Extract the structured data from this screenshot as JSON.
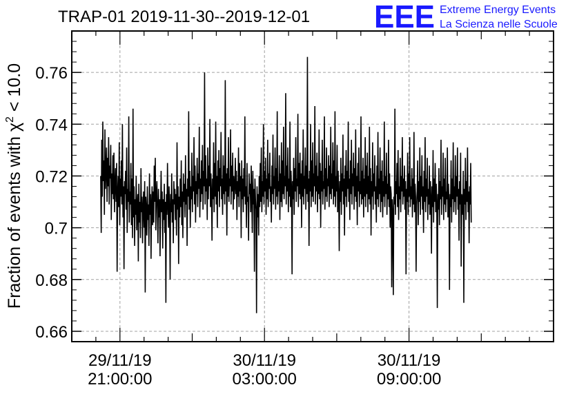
{
  "chart_data": {
    "type": "line",
    "title": "TRAP-01 2019-11-30--2019-12-01",
    "ylabel": "Fraction of events with χ² < 10.0",
    "ylabel_main": "Fraction of events with ",
    "ylabel_symbol": "χ",
    "ylabel_sup": "2",
    "ylabel_tail": " < 10.0",
    "xlabel": "",
    "ylim": [
      0.656,
      0.776
    ],
    "xlim": [
      "2019-11-29 19:00:00",
      "2019-11-30 15:00:00"
    ],
    "grid": true,
    "y_ticks": [
      {
        "value": 0.66,
        "label": "0.66"
      },
      {
        "value": 0.68,
        "label": "0.68"
      },
      {
        "value": 0.7,
        "label": "0.7"
      },
      {
        "value": 0.72,
        "label": "0.72"
      },
      {
        "value": 0.74,
        "label": "0.74"
      },
      {
        "value": 0.76,
        "label": "0.76"
      }
    ],
    "x_ticks": [
      {
        "time": "2019-11-29 21:00:00",
        "date_label": "29/11/19",
        "time_label": "21:00:00"
      },
      {
        "time": "2019-11-30 03:00:00",
        "date_label": "30/11/19",
        "time_label": "03:00:00"
      },
      {
        "time": "2019-11-30 09:00:00",
        "date_label": "30/11/19",
        "time_label": "09:00:00"
      }
    ],
    "series": [
      {
        "x_start": "2019-11-29 20:12:00",
        "x_end": "2019-11-30 11:35:00",
        "color": "#000000",
        "values": [
          0.72,
          0.698,
          0.734,
          0.712,
          0.741,
          0.718,
          0.726,
          0.705,
          0.738,
          0.715,
          0.722,
          0.731,
          0.71,
          0.727,
          0.716,
          0.735,
          0.709,
          0.724,
          0.719,
          0.732,
          0.703,
          0.721,
          0.713,
          0.728,
          0.711,
          0.729,
          0.706,
          0.717,
          0.723,
          0.71,
          0.725,
          0.683,
          0.714,
          0.72,
          0.708,
          0.733,
          0.701,
          0.719,
          0.712,
          0.726,
          0.709,
          0.74,
          0.704,
          0.716,
          0.684,
          0.718,
          0.713,
          0.722,
          0.707,
          0.731,
          0.698,
          0.715,
          0.71,
          0.743,
          0.702,
          0.714,
          0.709,
          0.725,
          0.701,
          0.719,
          0.696,
          0.746,
          0.704,
          0.716,
          0.693,
          0.711,
          0.705,
          0.72,
          0.699,
          0.708,
          0.713,
          0.687,
          0.717,
          0.702,
          0.71,
          0.696,
          0.723,
          0.706,
          0.712,
          0.694,
          0.708,
          0.714,
          0.7,
          0.718,
          0.675,
          0.712,
          0.707,
          0.697,
          0.716,
          0.703,
          0.709,
          0.693,
          0.721,
          0.705,
          0.713,
          0.688,
          0.709,
          0.716,
          0.701,
          0.714,
          0.702,
          0.724,
          0.71,
          0.727,
          0.699,
          0.712,
          0.718,
          0.707,
          0.694,
          0.715,
          0.704,
          0.711,
          0.689,
          0.708,
          0.722,
          0.706,
          0.714,
          0.692,
          0.711,
          0.703,
          0.717,
          0.698,
          0.71,
          0.671,
          0.713,
          0.705,
          0.725,
          0.709,
          0.7,
          0.716,
          0.708,
          0.68,
          0.713,
          0.706,
          0.721,
          0.702,
          0.711,
          0.694,
          0.718,
          0.709,
          0.715,
          0.703,
          0.713,
          0.697,
          0.733,
          0.707,
          0.716,
          0.686,
          0.712,
          0.704,
          0.719,
          0.708,
          0.726,
          0.701,
          0.714,
          0.696,
          0.721,
          0.71,
          0.717,
          0.704,
          0.728,
          0.709,
          0.715,
          0.693,
          0.719,
          0.712,
          0.745,
          0.707,
          0.722,
          0.7,
          0.716,
          0.711,
          0.729,
          0.706,
          0.72,
          0.714,
          0.735,
          0.709,
          0.724,
          0.702,
          0.718,
          0.713,
          0.727,
          0.708,
          0.721,
          0.715,
          0.739,
          0.704,
          0.719,
          0.71,
          0.726,
          0.713,
          0.732,
          0.707,
          0.722,
          0.716,
          0.76,
          0.709,
          0.728,
          0.714,
          0.719,
          0.703,
          0.731,
          0.711,
          0.724,
          0.716,
          0.742,
          0.708,
          0.721,
          0.713,
          0.695,
          0.719,
          0.711,
          0.733,
          0.706,
          0.725,
          0.712,
          0.741,
          0.709,
          0.72,
          0.7,
          0.726,
          0.714,
          0.73,
          0.708,
          0.723,
          0.716,
          0.737,
          0.711,
          0.719,
          0.705,
          0.728,
          0.713,
          0.724,
          0.709,
          0.757,
          0.714,
          0.721,
          0.697,
          0.723,
          0.712,
          0.735,
          0.71,
          0.719,
          0.716,
          0.738,
          0.709,
          0.724,
          0.714,
          0.729,
          0.707,
          0.72,
          0.711,
          0.716,
          0.727,
          0.713,
          0.722,
          0.703,
          0.718,
          0.712,
          0.731,
          0.708,
          0.725,
          0.714,
          0.72,
          0.696,
          0.726,
          0.711,
          0.719,
          0.706,
          0.723,
          0.712,
          0.743,
          0.709,
          0.716,
          0.7,
          0.725,
          0.71,
          0.712,
          0.695,
          0.721,
          0.713,
          0.717,
          0.706,
          0.724,
          0.711,
          0.698,
          0.722,
          0.709,
          0.715,
          0.683,
          0.719,
          0.711,
          0.707,
          0.667,
          0.716,
          0.704,
          0.713,
          0.697,
          0.72,
          0.708,
          0.725,
          0.71,
          0.731,
          0.706,
          0.718,
          0.712,
          0.74,
          0.709,
          0.722,
          0.714,
          0.727,
          0.705,
          0.719,
          0.711,
          0.734,
          0.708,
          0.721,
          0.715,
          0.729,
          0.71,
          0.716,
          0.702,
          0.724,
          0.713,
          0.736,
          0.709,
          0.72,
          0.715,
          0.731,
          0.707,
          0.723,
          0.712,
          0.745,
          0.709,
          0.718,
          0.714,
          0.728,
          0.703,
          0.721,
          0.71,
          0.733,
          0.708,
          0.726,
          0.713,
          0.739,
          0.711,
          0.72,
          0.716,
          0.752,
          0.709,
          0.724,
          0.714,
          0.731,
          0.706,
          0.719,
          0.712,
          0.741,
          0.708,
          0.722,
          0.715,
          0.682,
          0.718,
          0.711,
          0.727,
          0.705,
          0.723,
          0.714,
          0.735,
          0.71,
          0.719,
          0.716,
          0.744,
          0.708,
          0.725,
          0.713,
          0.729,
          0.711,
          0.721,
          0.7,
          0.726,
          0.712,
          0.738,
          0.709,
          0.72,
          0.715,
          0.731,
          0.707,
          0.724,
          0.713,
          0.766,
          0.71,
          0.719,
          0.693,
          0.722,
          0.714,
          0.74,
          0.708,
          0.726,
          0.712,
          0.733,
          0.71,
          0.721,
          0.716,
          0.747,
          0.709,
          0.724,
          0.714,
          0.729,
          0.706,
          0.72,
          0.713,
          0.738,
          0.711,
          0.725,
          0.7,
          0.722,
          0.714,
          0.734,
          0.709,
          0.718,
          0.715,
          0.743,
          0.707,
          0.723,
          0.712,
          0.731,
          0.71,
          0.719,
          0.716,
          0.728,
          0.708,
          0.724,
          0.713,
          0.739,
          0.711,
          0.721,
          0.715,
          0.733,
          0.709,
          0.726,
          0.712,
          0.745,
          0.708,
          0.72,
          0.714,
          0.732,
          0.706,
          0.722,
          0.713,
          0.691,
          0.718,
          0.71,
          0.727,
          0.705,
          0.721,
          0.714,
          0.736,
          0.709,
          0.719,
          0.697,
          0.724,
          0.712,
          0.73,
          0.708,
          0.722,
          0.715,
          0.741,
          0.71,
          0.719,
          0.703,
          0.726,
          0.713,
          0.734,
          0.709,
          0.721,
          0.716,
          0.729,
          0.707,
          0.723,
          0.712,
          0.738,
          0.71,
          0.72,
          0.701,
          0.725,
          0.714,
          0.731,
          0.708,
          0.718,
          0.713,
          0.743,
          0.709,
          0.722,
          0.711,
          0.727,
          0.704,
          0.719,
          0.712,
          0.735,
          0.708,
          0.724,
          0.713,
          0.729,
          0.706,
          0.72,
          0.711,
          0.739,
          0.709,
          0.723,
          0.697,
          0.718,
          0.712,
          0.733,
          0.707,
          0.721,
          0.714,
          0.728,
          0.709,
          0.716,
          0.702,
          0.724,
          0.711,
          0.737,
          0.708,
          0.719,
          0.713,
          0.731,
          0.706,
          0.722,
          0.71,
          0.726,
          0.704,
          0.718,
          0.712,
          0.741,
          0.708,
          0.72,
          0.713,
          0.729,
          0.705,
          0.717,
          0.711,
          0.734,
          0.708,
          0.721,
          0.7,
          0.716,
          0.713,
          0.677,
          0.711,
          0.706,
          0.674,
          0.712,
          0.709,
          0.746,
          0.705,
          0.718,
          0.713,
          0.725,
          0.708,
          0.73,
          0.703,
          0.716,
          0.711,
          0.727,
          0.706,
          0.72,
          0.714,
          0.735,
          0.709,
          0.719,
          0.712,
          0.724,
          0.707,
          0.718,
          0.682,
          0.715,
          0.71,
          0.729,
          0.705,
          0.721,
          0.712,
          0.735,
          0.708,
          0.716,
          0.711,
          0.723,
          0.704,
          0.719,
          0.709,
          0.737,
          0.706,
          0.717,
          0.712,
          0.683,
          0.709,
          0.714,
          0.726,
          0.701,
          0.718,
          0.71,
          0.731,
          0.705,
          0.72,
          0.712,
          0.728,
          0.707,
          0.716,
          0.698,
          0.722,
          0.71,
          0.735,
          0.706,
          0.719,
          0.712,
          0.727,
          0.703,
          0.715,
          0.709,
          0.724,
          0.705,
          0.718,
          0.711,
          0.69,
          0.716,
          0.708,
          0.73,
          0.702,
          0.719,
          0.71,
          0.725,
          0.706,
          0.717,
          0.709,
          0.669,
          0.713,
          0.707,
          0.723,
          0.701,
          0.718,
          0.711,
          0.734,
          0.705,
          0.716,
          0.712,
          0.729,
          0.703,
          0.719,
          0.709,
          0.727,
          0.706,
          0.714,
          0.711,
          0.731,
          0.704,
          0.717,
          0.71,
          0.676,
          0.713,
          0.708,
          0.726,
          0.702,
          0.719,
          0.711,
          0.733,
          0.706,
          0.716,
          0.71,
          0.728,
          0.705,
          0.72,
          0.712,
          0.731,
          0.707,
          0.715,
          0.695,
          0.718,
          0.709,
          0.729,
          0.685,
          0.713,
          0.711,
          0.705,
          0.722,
          0.671,
          0.715,
          0.709,
          0.727,
          0.703,
          0.718,
          0.71,
          0.731,
          0.706,
          0.714,
          0.694,
          0.716,
          0.709,
          0.725,
          0.702
        ]
      }
    ]
  },
  "logo": {
    "mark": "EEE",
    "line1": "Extreme Energy Events",
    "line2": "La Scienza nelle Scuole",
    "color": "#1a1aff"
  }
}
